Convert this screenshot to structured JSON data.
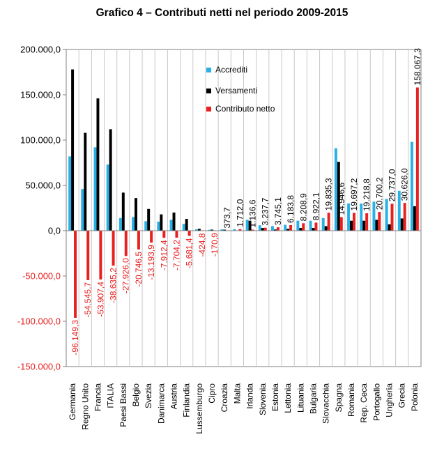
{
  "chart_data": {
    "type": "bar",
    "title": "Grafico 4 – Contributi netti nel periodo 2009-2015",
    "xlabel": "",
    "ylabel": "",
    "ylim": [
      -150000,
      200000
    ],
    "yticks": [
      200000,
      150000,
      100000,
      50000,
      0,
      -50000,
      -100000,
      -150000
    ],
    "ytick_labels": [
      "200.000,0",
      "150.000,0",
      "100.000,0",
      "50.000,0",
      "0,0",
      "-50.000,0",
      "-100.000,0",
      "-150.000,0"
    ],
    "grid": "vertical",
    "legend_position": "top-center",
    "categories": [
      "Germania",
      "Regno Unito",
      "Francia",
      "ITALIA",
      "Paesi Bassi",
      "Belgio",
      "Svezia",
      "Danimarca",
      "Austria",
      "Finlandia",
      "Lussemburgo",
      "Cipro",
      "Croazia",
      "Malta",
      "Irlanda",
      "Slovenia",
      "Estonia",
      "Lettonia",
      "Lituania",
      "Bulgaria",
      "Slovacchia",
      "Spagna",
      "Romania",
      "Rep. Ceca",
      "Portogallo",
      "Ungheria",
      "Grecia",
      "Polonia"
    ],
    "series": [
      {
        "name": "Accrediti",
        "color": "#29b0e6",
        "values": [
          82000,
          46000,
          92000,
          73000,
          14000,
          15000,
          10500,
          10000,
          12000,
          7500,
          1500,
          1000,
          1500,
          1700,
          12000,
          6000,
          5000,
          6500,
          11000,
          11000,
          14000,
          91000,
          30000,
          30000,
          32000,
          35000,
          44000,
          98000
        ]
      },
      {
        "name": "Versamenti",
        "color": "#000000",
        "values": [
          178000,
          108000,
          146000,
          112000,
          42000,
          36000,
          24000,
          18000,
          20000,
          13000,
          2000,
          1200,
          1100,
          200,
          11000,
          3000,
          1300,
          2000,
          3000,
          3000,
          5000,
          76000,
          11000,
          11000,
          12000,
          7000,
          13500,
          27000
        ]
      },
      {
        "name": "Contributo netto",
        "color": "#e8201f",
        "values": [
          -96149.3,
          -54545.7,
          -53907.4,
          -38635.2,
          -27926.0,
          -20746.5,
          -13193.9,
          -7912.4,
          -7704.2,
          -5681.4,
          -424.8,
          -170.9,
          373.7,
          1712.0,
          1136.6,
          3237.7,
          3745.1,
          6183.8,
          8208.9,
          8922.1,
          19835.3,
          14946.6,
          19697.2,
          19218.8,
          20700.2,
          29737.0,
          30626.0,
          158067.3
        ]
      }
    ],
    "data_labels": [
      "-96.149,3",
      "-54.545,7",
      "-53.907,4",
      "-38.635,2",
      "-27.926,0",
      "-20.746,5",
      "-13.193,9",
      "-7.912,4",
      "-7.704,2",
      "-5.681,4",
      "-424,8",
      "-170,9",
      "373,7",
      "1.712,0",
      "1.136,6",
      "3.237,7",
      "3.745,1",
      "6.183,8",
      "8.208,9",
      "8.922,1",
      "19.835,3",
      "14.946,6",
      "19.697,2",
      "19.218,8",
      "20.700,2",
      "29.737,0",
      "30.626,0",
      "158.067,3"
    ],
    "negative_color": "#e8201f",
    "grid_color": "#c8c8c8",
    "axis_color": "#7f7f7f"
  }
}
